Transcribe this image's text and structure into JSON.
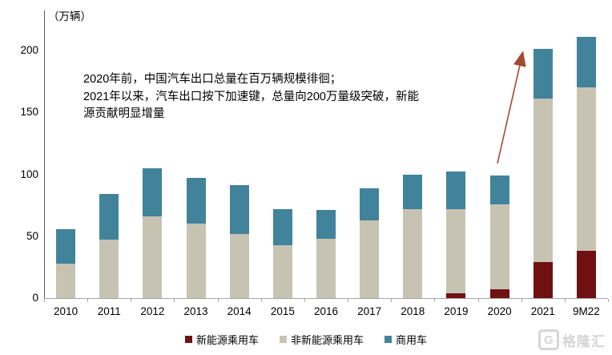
{
  "unit_label": "（万辆）",
  "annotation": {
    "lines": [
      "2020年前，中国汽车出口总量在百万辆规模徘徊；",
      "2021年以来，汽车出口按下加速键，总量向200万量级突破，新能",
      "源贡献明显增量"
    ],
    "arrow_color": "#a5492e"
  },
  "chart_data": {
    "type": "bar",
    "stacked": true,
    "title": "",
    "ylabel": "（万辆）",
    "xlabel": "",
    "categories": [
      "2010",
      "2011",
      "2012",
      "2013",
      "2014",
      "2015",
      "2016",
      "2017",
      "2018",
      "2019",
      "2020",
      "2021",
      "9M22"
    ],
    "series": [
      {
        "name": "新能源乘用车",
        "key": "nev-passenger",
        "color": "#701111",
        "values": [
          0,
          0,
          0,
          0,
          0,
          0,
          0,
          0,
          0,
          4,
          7,
          29,
          38
        ]
      },
      {
        "name": "非新能源乘用车",
        "key": "ice-passenger",
        "color": "#c7c3b3",
        "values": [
          28,
          47,
          66,
          60,
          52,
          43,
          48,
          63,
          72,
          68,
          69,
          132,
          132
        ]
      },
      {
        "name": "商用车",
        "key": "commercial",
        "color": "#41839a",
        "values": [
          28,
          37,
          39,
          37,
          39,
          29,
          23,
          26,
          28,
          30,
          23,
          40,
          41
        ]
      }
    ],
    "totals": [
      56,
      84,
      105,
      97,
      91,
      72,
      71,
      89,
      100,
      102,
      99,
      201,
      211
    ],
    "ylim": [
      0,
      232
    ],
    "yticks": [
      0,
      50,
      100,
      150,
      200
    ],
    "grid": false,
    "legend_position": "bottom"
  },
  "watermark": {
    "icon_letter": "G",
    "text": "格隆汇"
  }
}
